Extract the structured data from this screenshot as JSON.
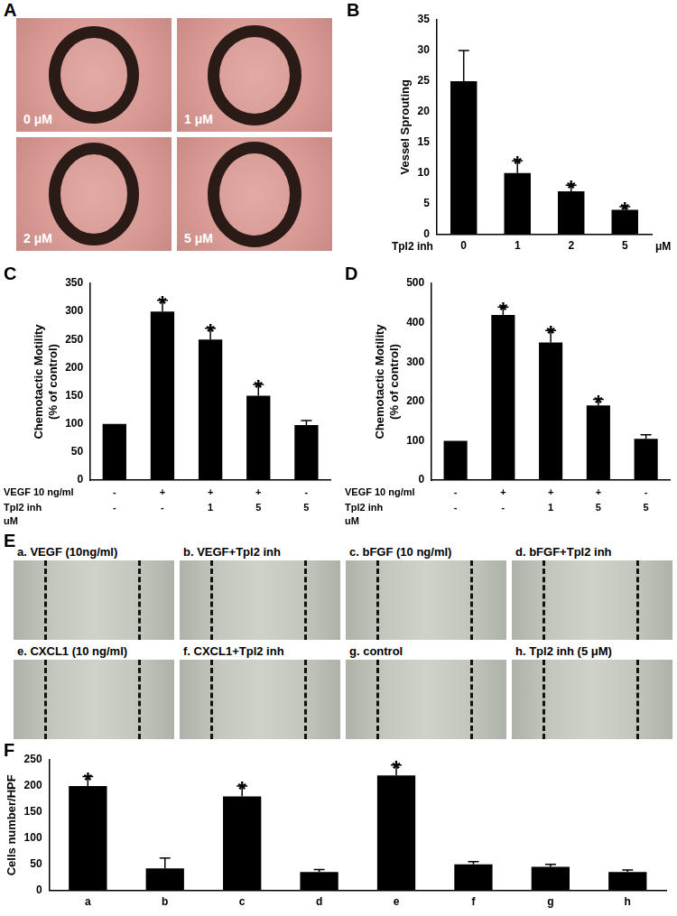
{
  "chart_data": [
    {
      "panel": "B",
      "type": "bar",
      "ylabel": "Vessel Sprouting",
      "xlabel": "Tpl2 inh",
      "xunit": "μM",
      "categories": [
        "0",
        "1",
        "2",
        "5"
      ],
      "values": [
        25,
        10,
        7,
        4
      ],
      "errors": [
        5,
        2,
        1,
        0.5
      ],
      "significance": [
        null,
        "*",
        "*",
        "*"
      ],
      "color": "#000000",
      "ylim": [
        0,
        35
      ],
      "yticks": [
        0,
        5,
        10,
        15,
        20,
        25,
        30,
        35
      ],
      "grid": false
    },
    {
      "panel": "C",
      "type": "bar",
      "ylabel": [
        "Chemotactic Motility",
        "(% of control)"
      ],
      "categories": [
        null,
        null,
        null,
        null,
        null
      ],
      "values": [
        100,
        300,
        250,
        150,
        98
      ],
      "errors": [
        0,
        20,
        20,
        20,
        8
      ],
      "significance": [
        null,
        "*",
        "*",
        "*",
        null
      ],
      "color": "#000000",
      "conditions": [
        {
          "name": "VEGF 10 ng/ml",
          "values": [
            "-",
            "+",
            "+",
            "+",
            "-"
          ]
        },
        {
          "name": "Tpl2 inh",
          "unit": "uM",
          "values": [
            "-",
            "-",
            "1",
            "5",
            "5"
          ]
        }
      ],
      "ylim": [
        0,
        350
      ],
      "yticks": [
        0,
        50,
        100,
        150,
        200,
        250,
        300,
        350
      ],
      "grid": false,
      "tick_labels": "y"
    },
    {
      "panel": "D",
      "type": "bar",
      "ylabel": [
        "Chemotactic Motility",
        "(% of control)"
      ],
      "categories": [
        null,
        null,
        null,
        null,
        null
      ],
      "values": [
        100,
        420,
        350,
        190,
        105
      ],
      "errors": [
        0,
        20,
        30,
        15,
        10
      ],
      "significance": [
        null,
        "*",
        "*",
        "*",
        null
      ],
      "color": "#000000",
      "conditions": [
        {
          "name": "VEGF 10 ng/ml",
          "values": [
            "-",
            "+",
            "+",
            "+",
            "-"
          ]
        },
        {
          "name": "Tpl2 inh",
          "unit": "uM",
          "values": [
            "-",
            "-",
            "1",
            "5",
            "5"
          ]
        }
      ],
      "ylim": [
        0,
        500
      ],
      "yticks": [
        0,
        100,
        200,
        300,
        400,
        500
      ],
      "grid": false,
      "tick_labels": "y"
    },
    {
      "panel": "F",
      "type": "bar",
      "ylabel": "Cells number/HPF",
      "categories": [
        "a",
        "b",
        "c",
        "d",
        "e",
        "f",
        "g",
        "h"
      ],
      "values": [
        200,
        42,
        180,
        35,
        220,
        50,
        45,
        35
      ],
      "errors": [
        18,
        20,
        20,
        5,
        20,
        5,
        5,
        4
      ],
      "significance": [
        "*",
        null,
        "*",
        null,
        "*",
        null,
        null,
        null
      ],
      "color": "#000000",
      "ylim": [
        0,
        250
      ],
      "yticks": [
        0,
        50,
        100,
        150,
        200,
        250
      ],
      "grid": false
    }
  ],
  "image_panels": [
    {
      "panel": "A",
      "labels": [
        "0 μM",
        "1 μM",
        "2 μM",
        "5 μM"
      ]
    },
    {
      "panel": "E",
      "labels": [
        "a. VEGF (10ng/ml)",
        "b. VEGF+Tpl2 inh",
        "c. bFGF (10 ng/ml)",
        "d. bFGF+Tpl2 inh",
        "e. CXCL1 (10 ng/ml)",
        "f. CXCL1+Tpl2 inh",
        "g. control",
        "h. Tpl2 inh (5 μM)"
      ]
    }
  ]
}
